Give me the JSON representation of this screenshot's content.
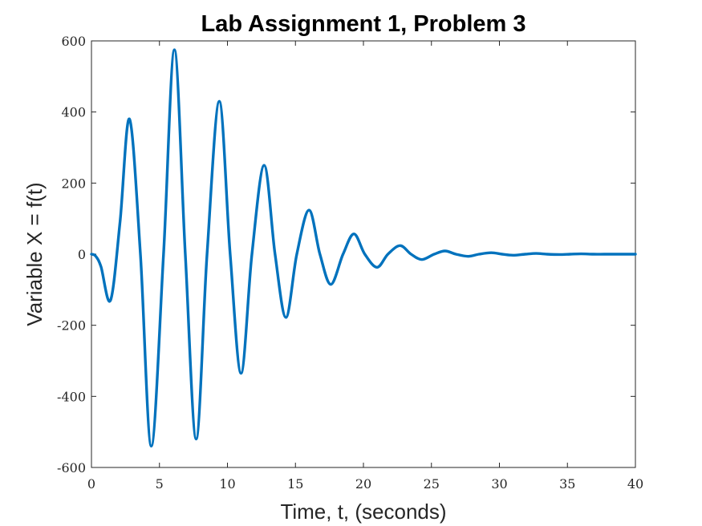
{
  "chart_data": {
    "type": "line",
    "title": "Lab Assignment 1, Problem 3",
    "xlabel": "Time, t, (seconds)",
    "ylabel": "Variable X = f(t)",
    "xlim": [
      0,
      40
    ],
    "ylim": [
      -600,
      600
    ],
    "xticks": [
      "0",
      "5",
      "10",
      "15",
      "20",
      "25",
      "30",
      "35",
      "40"
    ],
    "yticks": [
      "600",
      "400",
      "200",
      "0",
      "-200",
      "-400",
      "-600"
    ],
    "grid": false,
    "series": [
      {
        "color": "#0072BD",
        "x": [
          0,
          0.3,
          0.7,
          1.4,
          2.1,
          2.8,
          3.6,
          4.4,
          5.3,
          6.1,
          6.9,
          7.7,
          8.5,
          9.4,
          10.2,
          11.0,
          11.8,
          12.7,
          13.5,
          14.3,
          15.1,
          16.0,
          16.8,
          17.6,
          18.5,
          19.3,
          20.1,
          21.0,
          21.8,
          22.7,
          23.5,
          24.3,
          25.2,
          26.0,
          26.8,
          27.7,
          28.5,
          29.4,
          30.2,
          31.0,
          31.9,
          32.7,
          33.5,
          34.4,
          35.2,
          36.0,
          36.9,
          37.7,
          38.5,
          39.3,
          40.0
        ],
        "y": [
          0,
          -5,
          -35,
          -130,
          90,
          380,
          0,
          -540,
          0,
          575,
          0,
          -520,
          0,
          430,
          0,
          -335,
          0,
          250,
          0,
          -178,
          0,
          124,
          0,
          -85,
          0,
          57,
          0,
          -37,
          0,
          24,
          0,
          -15,
          0,
          9,
          0,
          -6,
          0,
          4,
          0,
          -3,
          0,
          2,
          0,
          -1,
          0,
          1,
          0,
          0,
          0,
          0,
          0
        ]
      }
    ]
  }
}
